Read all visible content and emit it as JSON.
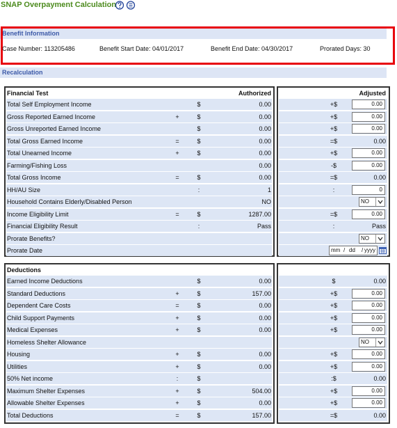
{
  "header": {
    "title": "SNAP Overpayment Calculation"
  },
  "benefit_information": {
    "title": "Benefit Information",
    "fields": [
      "Case Number: 113205486",
      "Benefit Start Date: 04/01/2017",
      "Benefit End Date: 04/30/2017",
      "Prorated Days: 30"
    ]
  },
  "recalculation": {
    "title": "Recalculation",
    "financial_test": {
      "title": "Financial Test",
      "authorized_header": "Authorized",
      "adjusted_header": "Adjusted",
      "rows": [
        {
          "label": "Total Self Employment Income",
          "sym": "$",
          "value": "0.00",
          "adj_sym": "+$",
          "adj": "0.00",
          "adj_kind": "input"
        },
        {
          "label": "Gross Reported Earned Income",
          "op": "+",
          "sym": "$",
          "value": "0.00",
          "adj_sym": "+$",
          "adj": "0.00",
          "adj_kind": "input"
        },
        {
          "label": "Gross Unreported Earned Income",
          "sym": "$",
          "value": "0.00",
          "adj_sym": "+$",
          "adj": "0.00",
          "adj_kind": "input"
        },
        {
          "label": "Total Gross Earned Income",
          "op": "=",
          "sym": "$",
          "value": "0.00",
          "adj_sym": "=$",
          "adj": "0.00",
          "adj_kind": "text"
        },
        {
          "label": "Total Unearned Income",
          "op": "+",
          "sym": "$",
          "value": "0.00",
          "adj_sym": "+$",
          "adj": "0.00",
          "adj_kind": "input"
        },
        {
          "label": "Farming/Fishing Loss",
          "value": "0.00",
          "adj_sym": "-$",
          "adj": "0.00",
          "adj_kind": "input"
        },
        {
          "label": "Total Gross Income",
          "op": "=",
          "sym": "$",
          "value": "0.00",
          "adj_sym": "=$",
          "adj": "0.00",
          "adj_kind": "text"
        },
        {
          "label": "HH/AU Size",
          "sym": ":",
          "value": "1",
          "adj_sym": ":",
          "adj": "0",
          "adj_kind": "input"
        },
        {
          "label": "Household Contains Elderly/Disabled Person",
          "value": "NO",
          "adj": "NO",
          "adj_kind": "select"
        },
        {
          "label": "Income Eligibility Limit",
          "op": "=",
          "sym": "$",
          "value": "1287.00",
          "adj_sym": "=$",
          "adj": "0.00",
          "adj_kind": "input"
        },
        {
          "label": "Financial Eligibility Result",
          "sym": ":",
          "value": "Pass",
          "adj_sym": ":",
          "adj": "Pass",
          "adj_kind": "text"
        },
        {
          "label": "Prorate Benefits?",
          "adj": "NO",
          "adj_kind": "select"
        },
        {
          "label": "Prorate Date",
          "adj_kind": "date",
          "date_parts": [
            "mm",
            "dd",
            "yyyy"
          ],
          "date_separator": "/"
        }
      ]
    },
    "deductions": {
      "title": "Deductions",
      "rows": [
        {
          "label": "Earned Income Deductions",
          "sym": "$",
          "value": "0.00",
          "adj_sym": "$",
          "adj": "0.00",
          "adj_kind": "text"
        },
        {
          "label": "Standard Deductions",
          "op": "+",
          "sym": "$",
          "value": "157.00",
          "adj_sym": "+$",
          "adj": "0.00",
          "adj_kind": "input"
        },
        {
          "label": "Dependent Care Costs",
          "op": "=",
          "sym": "$",
          "value": "0.00",
          "adj_sym": "+$",
          "adj": "0.00",
          "adj_kind": "input"
        },
        {
          "label": "Child Support Payments",
          "op": "+",
          "sym": "$",
          "value": "0.00",
          "adj_sym": "+$",
          "adj": "0.00",
          "adj_kind": "input"
        },
        {
          "label": "Medical Expenses",
          "op": "+",
          "sym": "$",
          "value": "0.00",
          "adj_sym": "+$",
          "adj": "0.00",
          "adj_kind": "input"
        },
        {
          "label": "Homeless Shelter Allowance",
          "adj": "NO",
          "adj_kind": "select"
        },
        {
          "label": "Housing",
          "op": "+",
          "sym": "$",
          "value": "0.00",
          "adj_sym": "+$",
          "adj": "0.00",
          "adj_kind": "input"
        },
        {
          "label": "Utilities",
          "op": "+",
          "sym": "$",
          "value": "0.00",
          "adj_sym": "+$",
          "adj": "0.00",
          "adj_kind": "input"
        },
        {
          "label": "50% Net income",
          "op": ":",
          "sym": "$",
          "adj_sym": ":$",
          "adj": "0.00",
          "adj_kind": "text"
        },
        {
          "label": "Maximum Shelter Expenses",
          "op": "+",
          "sym": "$",
          "value": "504.00",
          "adj_sym": "+$",
          "adj": "0.00",
          "adj_kind": "input"
        },
        {
          "label": "Allowable Shelter Expenses",
          "op": "+",
          "sym": "$",
          "value": "0.00",
          "adj_sym": "+$",
          "adj": "0.00",
          "adj_kind": "input"
        },
        {
          "label": "Total Deductions",
          "op": "=",
          "sym": "$",
          "value": "157.00",
          "adj_sym": "=$",
          "adj": "0.00",
          "adj_kind": "text"
        }
      ]
    }
  }
}
